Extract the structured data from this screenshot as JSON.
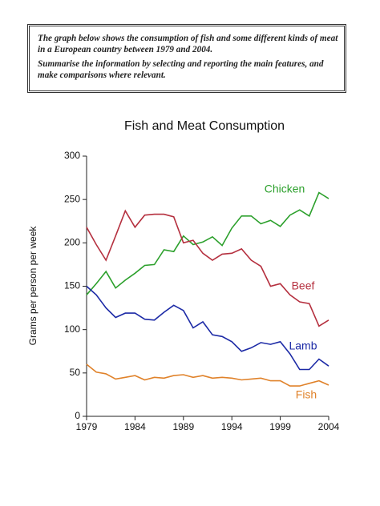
{
  "prompt": {
    "paragraphs": [
      [
        "The graph below shows the consumption of fish and some different kinds of meat",
        "in a European country between 1979 and 2004."
      ],
      [
        "Summarise the information by selecting and reporting the main features, and",
        "make comparisons where relevant."
      ]
    ]
  },
  "chart_data": {
    "type": "line",
    "title": "Fish and Meat Consumption",
    "y_label": "Grams per person per week",
    "x": [
      1979,
      1980,
      1981,
      1982,
      1983,
      1984,
      1985,
      1986,
      1987,
      1988,
      1989,
      1990,
      1991,
      1992,
      1993,
      1994,
      1995,
      1996,
      1997,
      1998,
      1999,
      2000,
      2001,
      2002,
      2003,
      2004
    ],
    "series": [
      {
        "name": "Chicken",
        "color": "#2ca02c",
        "values": [
          140,
          153,
          167,
          148,
          157,
          165,
          174,
          175,
          192,
          190,
          208,
          198,
          201,
          207,
          197,
          217,
          231,
          231,
          222,
          226,
          219,
          232,
          238,
          231,
          258,
          251
        ]
      },
      {
        "name": "Beef",
        "color": "#b5303f",
        "values": [
          218,
          198,
          180,
          208,
          237,
          218,
          232,
          233,
          233,
          230,
          200,
          203,
          188,
          180,
          187,
          188,
          193,
          180,
          173,
          150,
          153,
          140,
          132,
          130,
          104,
          111
        ]
      },
      {
        "name": "Lamb",
        "color": "#1c2aa6",
        "values": [
          150,
          140,
          125,
          114,
          119,
          119,
          112,
          111,
          120,
          128,
          122,
          102,
          109,
          94,
          92,
          86,
          75,
          79,
          85,
          83,
          86,
          72,
          54,
          54,
          66,
          58
        ]
      },
      {
        "name": "Fish",
        "color": "#e0822a",
        "values": [
          60,
          51,
          49,
          43,
          45,
          47,
          42,
          45,
          44,
          47,
          48,
          45,
          47,
          44,
          45,
          44,
          42,
          43,
          44,
          41,
          41,
          35,
          35,
          38,
          41,
          36
        ]
      }
    ],
    "xlim": [
      1979,
      2004
    ],
    "xticks": [
      1979,
      1984,
      1989,
      1994,
      1999,
      2004
    ],
    "ylim": [
      0,
      300
    ],
    "yticks": [
      0,
      50,
      100,
      150,
      200,
      250,
      300
    ],
    "grid": false
  }
}
